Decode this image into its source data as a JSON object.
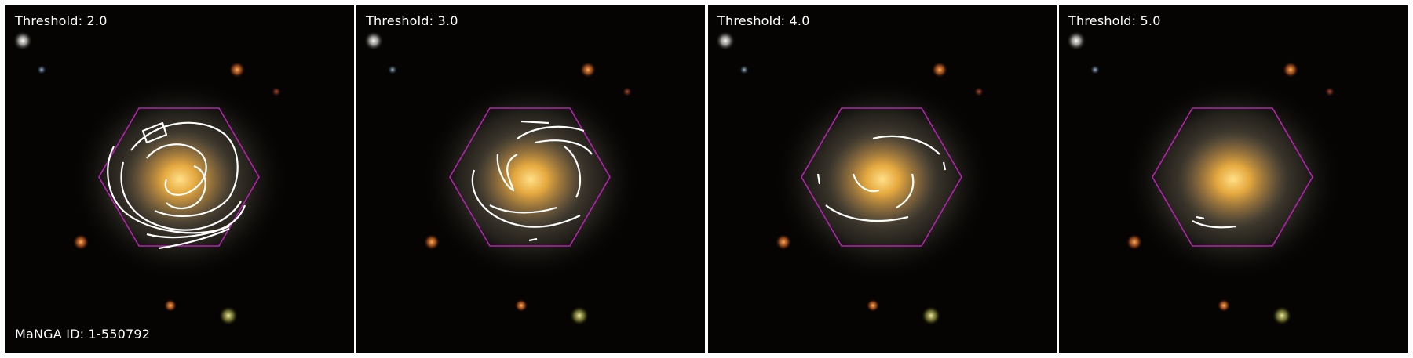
{
  "figure": {
    "manga_id_text": "MaNGA ID: 1-550792",
    "panels": [
      {
        "title": "Threshold: 2.0"
      },
      {
        "title": "Threshold: 3.0"
      },
      {
        "title": "Threshold: 4.0"
      },
      {
        "title": "Threshold: 5.0"
      }
    ],
    "colors": {
      "background": "#050403",
      "galaxy_core": "#f4b23c",
      "galaxy_halo": "#6b5e4a",
      "hexagon": "#b521b0",
      "contours": "#ffffff"
    }
  }
}
